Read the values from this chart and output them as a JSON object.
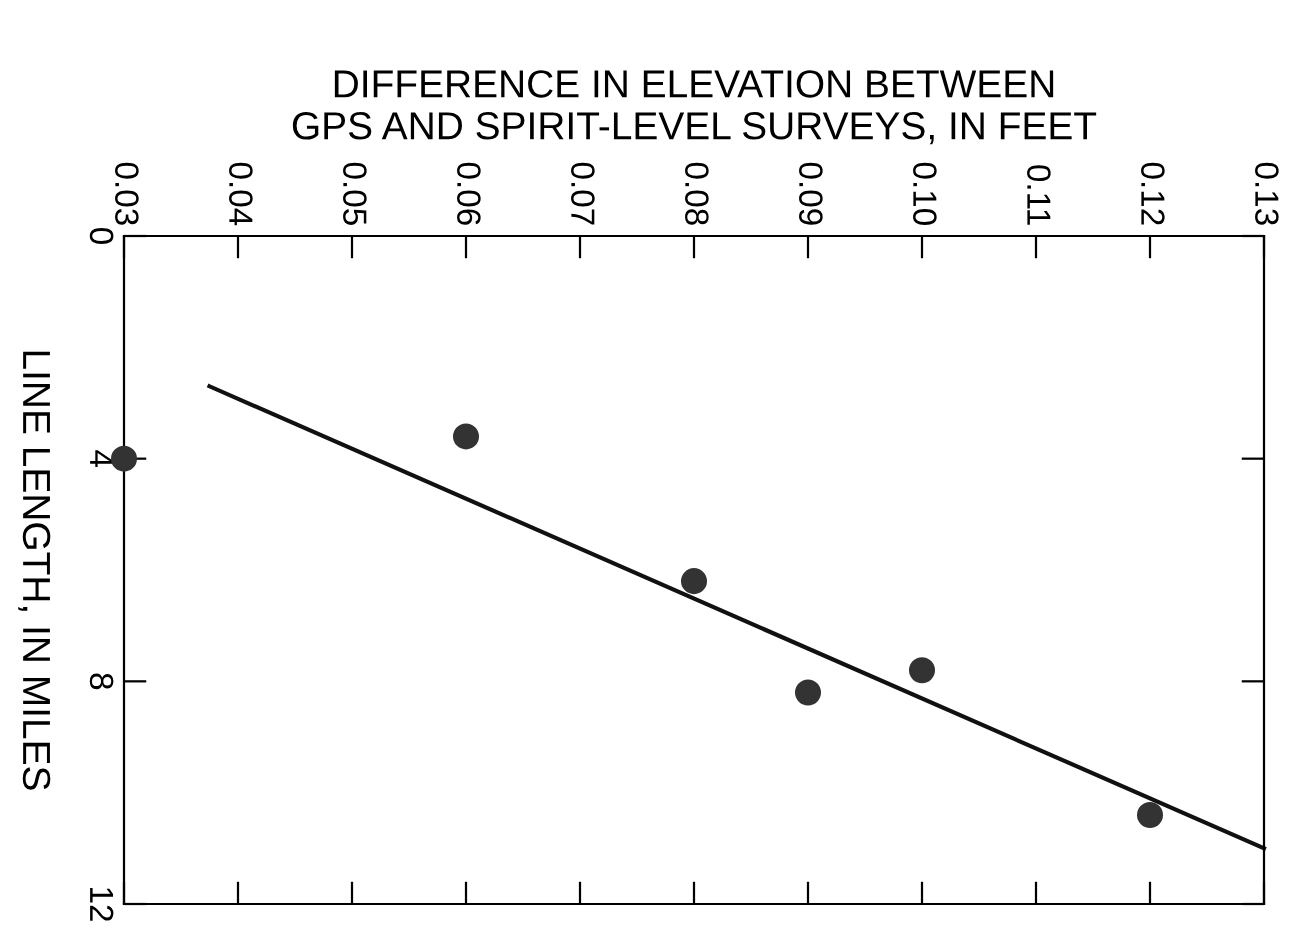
{
  "chart_data": {
    "type": "scatter",
    "xlabel": "DIFFERENCE IN ELEVATION BETWEEN\nGPS AND SPIRIT-LEVEL SURVEYS, IN FEET",
    "ylabel": "LINE LENGTH, IN MILES",
    "series": [
      {
        "color": "#333333",
        "marker": "circle",
        "x": [
          0.03,
          0.06,
          0.08,
          0.09,
          0.1,
          0.12
        ],
        "values": [
          4.0,
          3.6,
          6.2,
          8.2,
          7.8,
          10.4
        ]
      },
      {
        "type": "line",
        "color": "#111111",
        "x": [
          0.0375,
          0.13
        ],
        "values": [
          2.7,
          11.0
        ]
      }
    ],
    "xlim": [
      0.03,
      0.13
    ],
    "xticks": [
      {
        "value": 0.03,
        "label": "0.03"
      },
      {
        "value": 0.04,
        "label": "0.04"
      },
      {
        "value": 0.05,
        "label": "0.05"
      },
      {
        "value": 0.06,
        "label": "0.06"
      },
      {
        "value": 0.07,
        "label": "0.07"
      },
      {
        "value": 0.08,
        "label": "0.08"
      },
      {
        "value": 0.09,
        "label": "0.09"
      },
      {
        "value": 0.1,
        "label": "0.10"
      },
      {
        "value": 0.11,
        "label": "0.11"
      },
      {
        "value": 0.12,
        "label": "0.12"
      },
      {
        "value": 0.13,
        "label": "0.13"
      }
    ],
    "ylim": [
      12,
      0
    ],
    "yticks": [
      0,
      4,
      8,
      12
    ],
    "grid": false,
    "legend": false
  }
}
